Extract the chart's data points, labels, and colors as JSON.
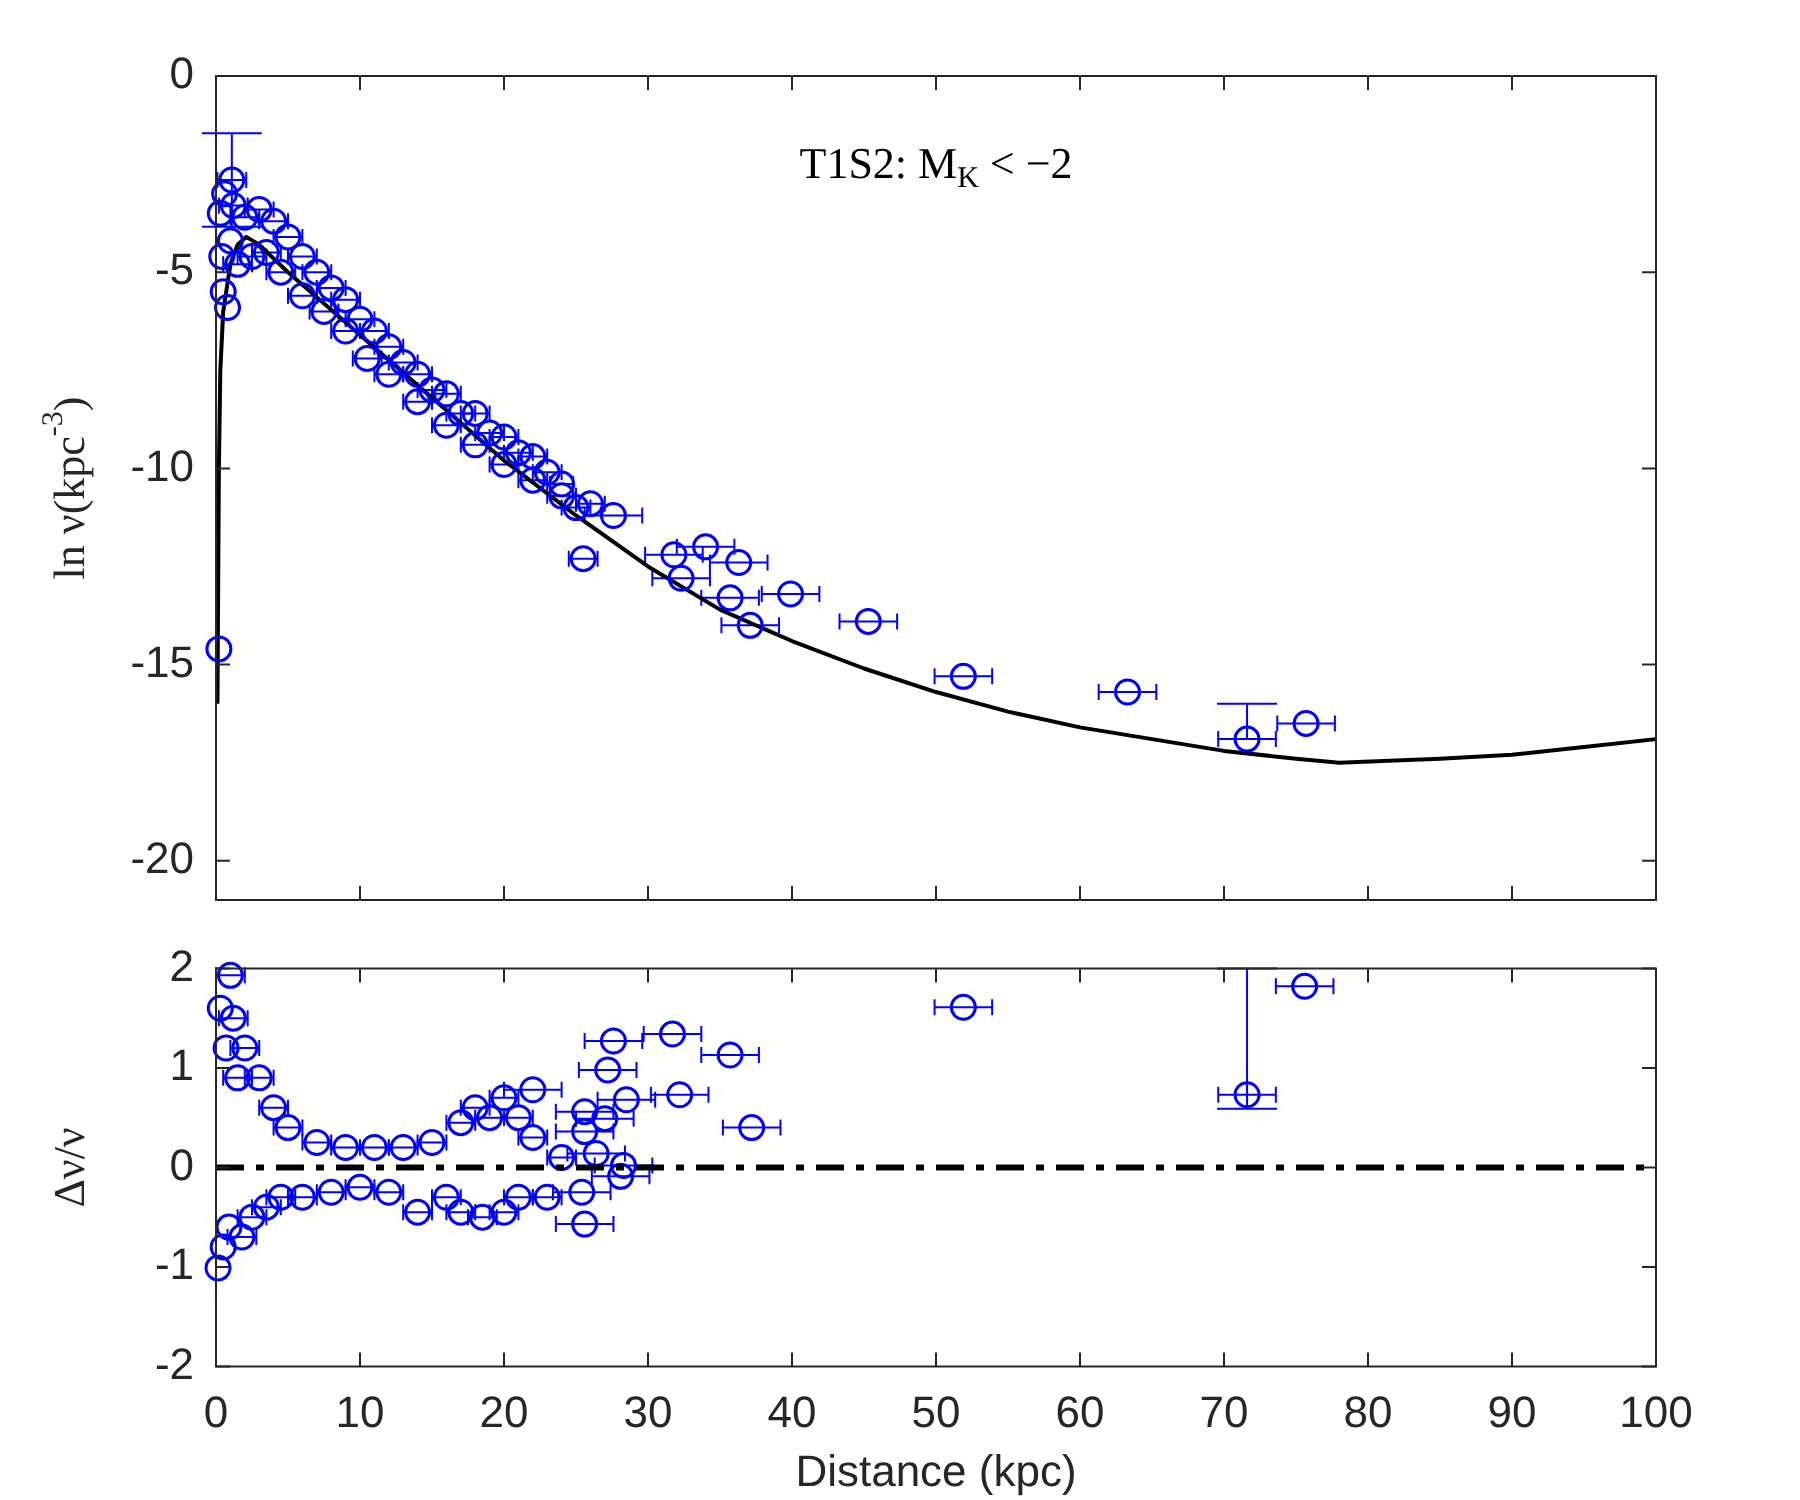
{
  "chart_data": [
    {
      "type": "scatter",
      "ylabel": "ln ν(kpc$^{-3}$)",
      "annotations": [
        "T1S2: M$_{K}$ < −2"
      ],
      "xlim": [
        0,
        100
      ],
      "xticks": [
        0,
        10,
        20,
        30,
        40,
        50,
        60,
        70,
        80,
        90,
        100
      ],
      "ylim": [
        -21,
        0
      ],
      "yticks": [
        0,
        -5,
        -10,
        -15,
        -20
      ],
      "tick_labels": "y",
      "series": [
        {
          "type": "scatter",
          "marker": "circle",
          "color": "#0000ff",
          "x": [
            0.2,
            1.1,
            0.3,
            0.4,
            0.5,
            0.6,
            0.8,
            1.0,
            1.2,
            1.5,
            2,
            2.5,
            3,
            3.5,
            4,
            4.5,
            5,
            6,
            6,
            7,
            7.5,
            8,
            9,
            9,
            10,
            10.5,
            11,
            12,
            12,
            13,
            14,
            14,
            15,
            16,
            16,
            17,
            18,
            18,
            19,
            20,
            20,
            21,
            22,
            22,
            23,
            24,
            24,
            25,
            25.5,
            26,
            27.6,
            31.8,
            34.0,
            36.3,
            32.3,
            35.7,
            39.9,
            37.1,
            45.3,
            51.9,
            63.3,
            71.6,
            75.7
          ],
          "values": [
            -14.6,
            -2.65,
            -3.5,
            -4.6,
            -5.5,
            -3.0,
            -5.9,
            -4.2,
            -3.3,
            -4.8,
            -3.6,
            -4.6,
            -3.4,
            -4.5,
            -3.7,
            -5.0,
            -4.1,
            -4.6,
            -5.6,
            -5.0,
            -6.0,
            -5.4,
            -6.5,
            -5.7,
            -6.2,
            -7.2,
            -6.5,
            -7.6,
            -6.9,
            -7.3,
            -8.3,
            -7.6,
            -8.0,
            -8.9,
            -8.1,
            -8.6,
            -9.4,
            -8.6,
            -9.1,
            -9.9,
            -9.2,
            -9.6,
            -10.3,
            -9.7,
            -10.1,
            -10.7,
            -10.4,
            -11.0,
            -12.3,
            -10.9,
            -11.2,
            -12.2,
            -12.0,
            -12.4,
            -12.8,
            -13.3,
            -13.2,
            -14.0,
            -13.9,
            -15.3,
            -15.7,
            -16.9,
            -16.5
          ],
          "xerrors": [
            null,
            1.0,
            null,
            null,
            null,
            null,
            null,
            null,
            1,
            1,
            1,
            1,
            1,
            1,
            1,
            1,
            1,
            1,
            1,
            1,
            1,
            1,
            1,
            1,
            1,
            1,
            1,
            1,
            1,
            1,
            1,
            1,
            1,
            1,
            1,
            1,
            1,
            1,
            1,
            1,
            1,
            1,
            1,
            1,
            1,
            1,
            0.8,
            1,
            1,
            1,
            2,
            2,
            2,
            2,
            2,
            2,
            2,
            2,
            2,
            2,
            2,
            2,
            2
          ],
          "errors": [
            null,
            [
              -3.84,
              -1.46
            ],
            null,
            null,
            null,
            null,
            null,
            null,
            null,
            null,
            null,
            null,
            null,
            null,
            null,
            null,
            null,
            null,
            null,
            null,
            null,
            null,
            null,
            null,
            null,
            null,
            null,
            null,
            null,
            null,
            null,
            null,
            null,
            null,
            null,
            null,
            null,
            null,
            null,
            null,
            null,
            null,
            null,
            null,
            null,
            null,
            null,
            null,
            null,
            null,
            null,
            null,
            null,
            null,
            null,
            null,
            null,
            null,
            null,
            null,
            null,
            [
              -16.9,
              -16.0
            ],
            null
          ]
        },
        {
          "type": "line",
          "marker": "none",
          "color": "#000000",
          "x": [
            0.1,
            0.2,
            0.3,
            0.5,
            1,
            1.5,
            2.1,
            3,
            5,
            7.5,
            10,
            15,
            20,
            25,
            30,
            35,
            40,
            45,
            50,
            55,
            60,
            65,
            70,
            75,
            78,
            85,
            90,
            95,
            100
          ],
          "values": [
            -16,
            -10,
            -7.5,
            -6,
            -4.8,
            -4.3,
            -4.1,
            -4.3,
            -5.0,
            -5.8,
            -6.6,
            -8.2,
            -9.8,
            -11.2,
            -12.5,
            -13.6,
            -14.4,
            -15.1,
            -15.7,
            -16.2,
            -16.6,
            -16.9,
            -17.2,
            -17.4,
            -17.5,
            -17.4,
            -17.3,
            -17.1,
            -16.9
          ]
        }
      ]
    },
    {
      "type": "scatter",
      "xlabel": "Distance (kpc)",
      "ylabel": "Δν/ν",
      "xlim": [
        0,
        100
      ],
      "xticks": [
        0,
        10,
        20,
        30,
        40,
        50,
        60,
        70,
        80,
        90,
        100
      ],
      "ylim": [
        -2,
        2
      ],
      "yticks": [
        -2,
        -1,
        0,
        1,
        2
      ],
      "ref_lines": [
        {
          "axis": "y",
          "value": 0,
          "color": "#000000",
          "line_style": "dashed"
        }
      ],
      "series": [
        {
          "type": "scatter",
          "marker": "circle",
          "color": "#0000ff",
          "x": [
            1.0,
            0.14,
            0.3,
            0.5,
            0.7,
            0.9,
            1.2,
            1.5,
            1.8,
            2,
            2.5,
            3,
            3.5,
            4,
            4.5,
            5,
            6,
            7,
            8,
            9,
            10,
            11,
            12,
            13,
            14,
            15,
            16,
            17,
            17,
            18,
            18.5,
            19,
            20,
            20,
            21,
            21,
            22,
            23,
            24,
            22.0,
            27.6,
            27.2,
            31.7,
            35.7,
            32.2,
            28.5,
            37.2,
            25.6,
            27.0,
            25.6,
            26.4,
            28.3,
            28.1,
            25.4,
            25.6,
            51.9,
            71.6,
            75.6
          ],
          "values": [
            1.93,
            -1.01,
            1.6,
            -0.8,
            1.2,
            -0.6,
            1.5,
            0.9,
            -0.7,
            1.2,
            -0.5,
            0.9,
            -0.4,
            0.6,
            -0.3,
            0.4,
            -0.3,
            0.25,
            -0.25,
            0.2,
            -0.2,
            0.2,
            -0.25,
            0.2,
            -0.45,
            0.25,
            -0.3,
            0.45,
            -0.45,
            0.6,
            -0.5,
            0.5,
            0.7,
            -0.45,
            0.5,
            -0.3,
            0.3,
            -0.3,
            0.1,
            0.78,
            1.27,
            0.98,
            1.34,
            1.13,
            0.73,
            0.68,
            0.4,
            0.56,
            0.49,
            0.36,
            0.14,
            0.02,
            -0.09,
            -0.25,
            -0.57,
            1.61,
            0.73,
            1.82
          ],
          "xerrors": [
            1.0,
            null,
            null,
            null,
            null,
            null,
            1,
            1,
            1,
            1,
            1,
            1,
            1,
            1,
            1,
            1,
            1,
            1,
            1,
            1,
            1,
            1,
            1,
            1,
            1,
            1,
            1,
            1,
            1,
            1,
            1,
            1,
            1,
            1,
            1,
            1,
            1,
            1,
            1,
            2,
            2,
            2,
            2,
            2,
            2,
            2,
            2,
            2,
            2,
            2,
            2,
            2,
            2,
            2,
            2,
            2,
            2,
            2
          ],
          "errors": [
            null,
            null,
            null,
            null,
            null,
            null,
            null,
            null,
            null,
            null,
            null,
            null,
            null,
            null,
            null,
            null,
            null,
            null,
            null,
            null,
            null,
            null,
            null,
            null,
            null,
            null,
            null,
            null,
            null,
            null,
            null,
            null,
            null,
            null,
            null,
            null,
            null,
            null,
            null,
            null,
            null,
            null,
            null,
            null,
            null,
            null,
            null,
            null,
            null,
            null,
            null,
            null,
            null,
            null,
            null,
            null,
            [
              0.59,
              2
            ],
            null
          ]
        }
      ]
    }
  ]
}
